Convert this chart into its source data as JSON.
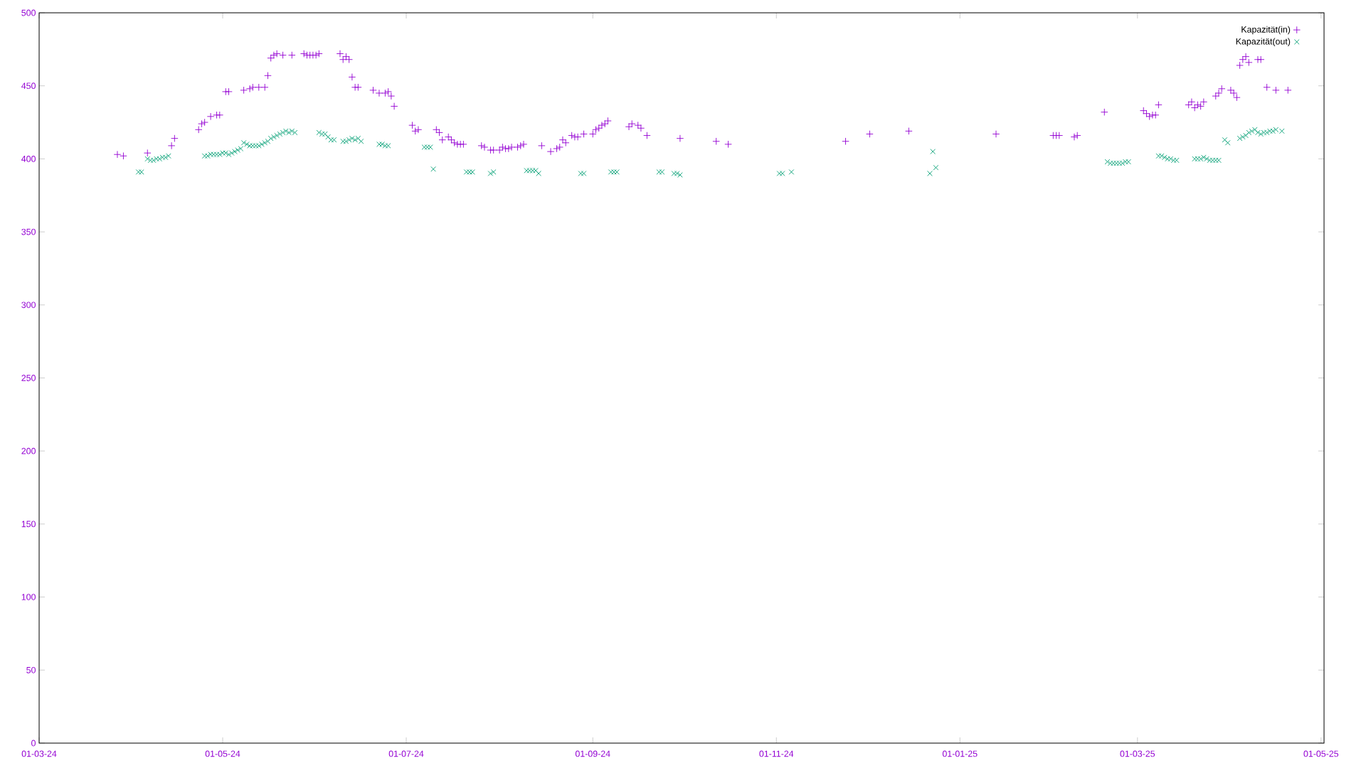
{
  "chart_data": {
    "type": "scatter",
    "xlim": [
      "2024-03-01",
      "2025-05-02"
    ],
    "ylim": [
      0,
      500
    ],
    "xticks": [
      {
        "value": "2024-03-01",
        "label": "01-03-24"
      },
      {
        "value": "2024-05-01",
        "label": "01-05-24"
      },
      {
        "value": "2024-07-01",
        "label": "01-07-24"
      },
      {
        "value": "2024-09-01",
        "label": "01-09-24"
      },
      {
        "value": "2024-11-01",
        "label": "01-11-24"
      },
      {
        "value": "2025-01-01",
        "label": "01-01-25"
      },
      {
        "value": "2025-03-01",
        "label": "01-03-25"
      },
      {
        "value": "2025-05-01",
        "label": "01-05-25"
      }
    ],
    "yticks": [
      0,
      50,
      100,
      150,
      200,
      250,
      300,
      350,
      400,
      450,
      500
    ],
    "legend": "top right",
    "series": [
      {
        "name": "Kapazität(in)",
        "color": "#9400d3",
        "marker": "plus",
        "x": [
          "2024-03-27",
          "2024-03-29",
          "2024-04-06",
          "2024-04-14",
          "2024-04-15",
          "2024-04-23",
          "2024-04-24",
          "2024-04-25",
          "2024-04-27",
          "2024-04-29",
          "2024-04-30",
          "2024-05-02",
          "2024-05-03",
          "2024-05-08",
          "2024-05-10",
          "2024-05-11",
          "2024-05-13",
          "2024-05-15",
          "2024-05-16",
          "2024-05-17",
          "2024-05-18",
          "2024-05-19",
          "2024-05-21",
          "2024-05-24",
          "2024-05-28",
          "2024-05-29",
          "2024-05-30",
          "2024-05-31",
          "2024-06-01",
          "2024-06-02",
          "2024-06-09",
          "2024-06-10",
          "2024-06-11",
          "2024-06-12",
          "2024-06-13",
          "2024-06-14",
          "2024-06-15",
          "2024-06-20",
          "2024-06-22",
          "2024-06-24",
          "2024-06-25",
          "2024-06-26",
          "2024-06-27",
          "2024-07-03",
          "2024-07-04",
          "2024-07-05",
          "2024-07-11",
          "2024-07-12",
          "2024-07-13",
          "2024-07-15",
          "2024-07-16",
          "2024-07-17",
          "2024-07-18",
          "2024-07-19",
          "2024-07-20",
          "2024-07-26",
          "2024-07-27",
          "2024-07-29",
          "2024-07-30",
          "2024-08-01",
          "2024-08-02",
          "2024-08-03",
          "2024-08-04",
          "2024-08-05",
          "2024-08-07",
          "2024-08-08",
          "2024-08-09",
          "2024-08-15",
          "2024-08-18",
          "2024-08-20",
          "2024-08-21",
          "2024-08-22",
          "2024-08-23",
          "2024-08-25",
          "2024-08-26",
          "2024-08-27",
          "2024-08-29",
          "2024-09-01",
          "2024-09-02",
          "2024-09-03",
          "2024-09-04",
          "2024-09-05",
          "2024-09-06",
          "2024-09-13",
          "2024-09-14",
          "2024-09-16",
          "2024-09-17",
          "2024-09-19",
          "2024-09-30",
          "2024-10-12",
          "2024-10-16",
          "2024-11-24",
          "2024-12-02",
          "2024-12-15",
          "2025-01-13",
          "2025-02-01",
          "2025-02-02",
          "2025-02-03",
          "2025-02-08",
          "2025-02-09",
          "2025-02-18",
          "2025-03-03",
          "2025-03-04",
          "2025-03-05",
          "2025-03-06",
          "2025-03-07",
          "2025-03-08",
          "2025-03-18",
          "2025-03-19",
          "2025-03-20",
          "2025-03-21",
          "2025-03-22",
          "2025-03-23",
          "2025-03-27",
          "2025-03-28",
          "2025-03-29",
          "2025-04-01",
          "2025-04-02",
          "2025-04-03",
          "2025-04-04",
          "2025-04-05",
          "2025-04-06",
          "2025-04-07",
          "2025-04-10",
          "2025-04-11",
          "2025-04-13",
          "2025-04-16",
          "2025-04-20"
        ],
        "values": [
          403,
          402,
          404,
          409,
          414,
          420,
          424,
          425,
          429,
          430,
          430,
          446,
          446,
          447,
          448,
          449,
          449,
          449,
          457,
          469,
          471,
          472,
          471,
          471,
          472,
          471,
          471,
          471,
          471,
          472,
          472,
          468,
          470,
          468,
          456,
          449,
          449,
          447,
          445,
          445,
          446,
          443,
          436,
          423,
          419,
          420,
          420,
          418,
          413,
          415,
          413,
          411,
          410,
          410,
          410,
          409,
          408,
          406,
          406,
          406,
          408,
          407,
          407,
          408,
          408,
          409,
          410,
          409,
          405,
          407,
          408,
          413,
          411,
          416,
          415,
          415,
          417,
          417,
          420,
          421,
          423,
          424,
          426,
          422,
          424,
          423,
          421,
          416,
          414,
          412,
          410,
          412,
          417,
          419,
          417,
          416,
          416,
          416,
          415,
          416,
          432,
          433,
          431,
          429,
          430,
          430,
          437,
          437,
          439,
          435,
          437,
          436,
          439,
          443,
          445,
          448,
          447,
          445,
          442,
          464,
          468,
          470,
          466,
          468,
          468,
          449,
          447,
          447
        ]
      },
      {
        "name": "Kapazität(out)",
        "color": "#009e73",
        "marker": "cross",
        "x": [
          "2024-04-03",
          "2024-04-04",
          "2024-04-06",
          "2024-04-07",
          "2024-04-08",
          "2024-04-09",
          "2024-04-10",
          "2024-04-11",
          "2024-04-12",
          "2024-04-13",
          "2024-04-25",
          "2024-04-26",
          "2024-04-27",
          "2024-04-28",
          "2024-04-29",
          "2024-04-30",
          "2024-05-01",
          "2024-05-02",
          "2024-05-03",
          "2024-05-04",
          "2024-05-05",
          "2024-05-06",
          "2024-05-07",
          "2024-05-08",
          "2024-05-09",
          "2024-05-10",
          "2024-05-11",
          "2024-05-12",
          "2024-05-13",
          "2024-05-14",
          "2024-05-15",
          "2024-05-16",
          "2024-05-17",
          "2024-05-18",
          "2024-05-19",
          "2024-05-20",
          "2024-05-21",
          "2024-05-22",
          "2024-05-23",
          "2024-05-24",
          "2024-05-25",
          "2024-06-02",
          "2024-06-03",
          "2024-06-04",
          "2024-06-05",
          "2024-06-06",
          "2024-06-07",
          "2024-06-10",
          "2024-06-11",
          "2024-06-12",
          "2024-06-13",
          "2024-06-14",
          "2024-06-15",
          "2024-06-16",
          "2024-06-22",
          "2024-06-23",
          "2024-06-24",
          "2024-06-25",
          "2024-07-07",
          "2024-07-08",
          "2024-07-09",
          "2024-07-10",
          "2024-07-21",
          "2024-07-22",
          "2024-07-23",
          "2024-07-29",
          "2024-07-30",
          "2024-08-10",
          "2024-08-11",
          "2024-08-12",
          "2024-08-13",
          "2024-08-14",
          "2024-08-28",
          "2024-08-29",
          "2024-09-07",
          "2024-09-08",
          "2024-09-09",
          "2024-09-23",
          "2024-09-24",
          "2024-09-28",
          "2024-09-29",
          "2024-09-30",
          "2024-11-02",
          "2024-11-03",
          "2024-11-06",
          "2024-12-22",
          "2024-12-23",
          "2024-12-24",
          "2025-02-19",
          "2025-02-20",
          "2025-02-21",
          "2025-02-22",
          "2025-02-23",
          "2025-02-24",
          "2025-02-25",
          "2025-02-26",
          "2025-03-08",
          "2025-03-09",
          "2025-03-10",
          "2025-03-11",
          "2025-03-12",
          "2025-03-13",
          "2025-03-14",
          "2025-03-20",
          "2025-03-21",
          "2025-03-22",
          "2025-03-23",
          "2025-03-24",
          "2025-03-25",
          "2025-03-26",
          "2025-03-27",
          "2025-03-28",
          "2025-03-30",
          "2025-03-31",
          "2025-04-04",
          "2025-04-05",
          "2025-04-06",
          "2025-04-07",
          "2025-04-08",
          "2025-04-09",
          "2025-04-10",
          "2025-04-11",
          "2025-04-12",
          "2025-04-13",
          "2025-04-14",
          "2025-04-15",
          "2025-04-16",
          "2025-04-18"
        ],
        "values": [
          391,
          391,
          400,
          399,
          399,
          400,
          400,
          401,
          401,
          402,
          402,
          402,
          403,
          403,
          403,
          403,
          404,
          404,
          403,
          404,
          405,
          406,
          407,
          411,
          410,
          409,
          409,
          409,
          409,
          410,
          411,
          412,
          414,
          415,
          416,
          417,
          418,
          419,
          418,
          419,
          418,
          418,
          417,
          417,
          415,
          413,
          413,
          412,
          412,
          413,
          414,
          413,
          414,
          412,
          410,
          410,
          409,
          409,
          408,
          408,
          408,
          393,
          391,
          391,
          391,
          390,
          391,
          392,
          392,
          392,
          392,
          390,
          390,
          390,
          391,
          391,
          391,
          391,
          391,
          390,
          390,
          389,
          390,
          390,
          391,
          390,
          405,
          394,
          398,
          397,
          397,
          397,
          397,
          397,
          398,
          398,
          402,
          402,
          401,
          400,
          400,
          399,
          399,
          400,
          400,
          400,
          401,
          400,
          399,
          399,
          399,
          399,
          413,
          411,
          414,
          415,
          416,
          418,
          419,
          420,
          418,
          417,
          418,
          418,
          419,
          419,
          420,
          419
        ]
      }
    ]
  }
}
